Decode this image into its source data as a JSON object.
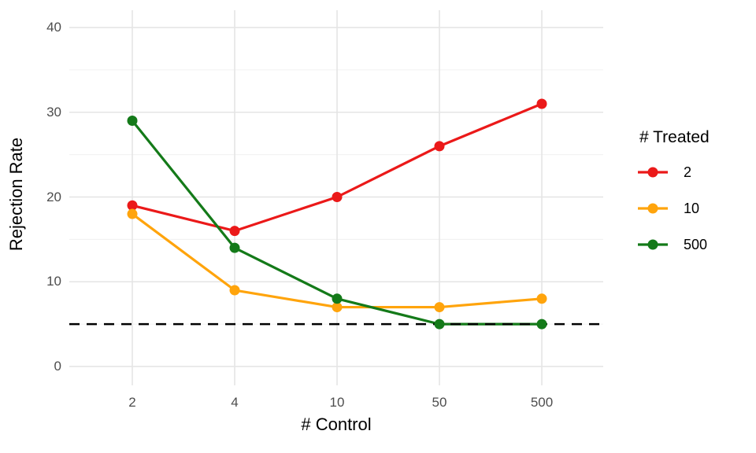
{
  "chart_data": {
    "type": "line",
    "xlabel": "# Control",
    "ylabel": "Rejection Rate",
    "categories": [
      "2",
      "4",
      "10",
      "50",
      "500"
    ],
    "series": [
      {
        "name": "2",
        "color": "#eb1919",
        "values": [
          19,
          16,
          20,
          26,
          31
        ]
      },
      {
        "name": "10",
        "color": "#ffa40c",
        "values": [
          18,
          9,
          7,
          7,
          8
        ]
      },
      {
        "name": "500",
        "color": "#147a19",
        "values": [
          29,
          14,
          8,
          5,
          5
        ]
      }
    ],
    "y_ticks": [
      0,
      10,
      20,
      30,
      40
    ],
    "y_minor_ticks": [
      5,
      15,
      25,
      35
    ],
    "ylim": [
      0,
      40
    ],
    "reference_line": {
      "y": 5,
      "style": "dashed",
      "color": "#000000"
    },
    "legend": {
      "title": "# Treated",
      "position": "right"
    },
    "grid": true
  },
  "colors": {
    "background": "#ffffff",
    "grid_major": "#e4e4e4",
    "grid_minor": "#f0f0f0",
    "tick_label": "#4d4d4d",
    "axis_title": "#000000"
  }
}
